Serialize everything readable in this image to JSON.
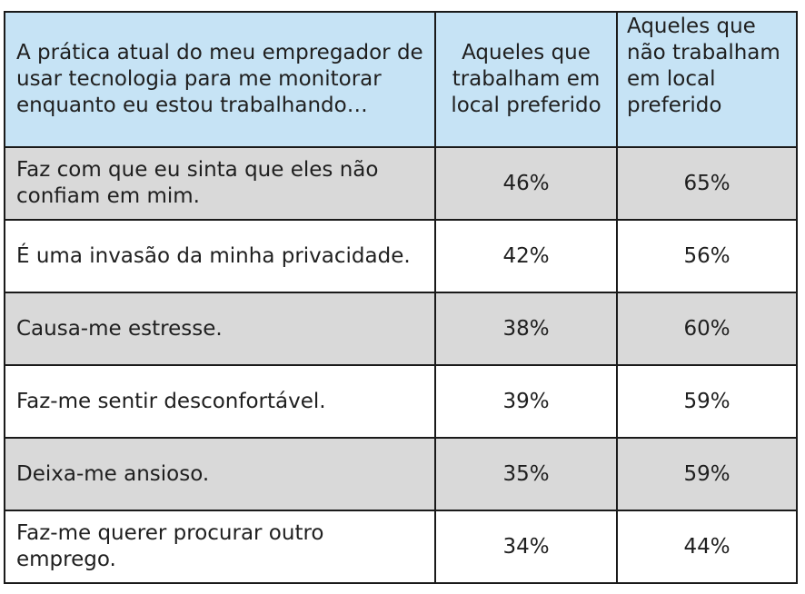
{
  "chart_data": {
    "type": "table",
    "columns": [
      "A prática atual do meu empregador de usar tecnologia para me monitorar enquanto eu estou trabalhando…",
      "Aqueles que trabalham em local preferido",
      "Aqueles que não trabalham em local preferido"
    ],
    "rows": [
      {
        "label": "Faz com que eu sinta que eles não confiam em mim.",
        "preferred": "46%",
        "not_preferred": "65%"
      },
      {
        "label": "É uma invasão da minha privacidade.",
        "preferred": "42%",
        "not_preferred": "56%"
      },
      {
        "label": "Causa-me estresse.",
        "preferred": "38%",
        "not_preferred": "60%"
      },
      {
        "label": "Faz-me sentir desconfortável.",
        "preferred": "39%",
        "not_preferred": "59%"
      },
      {
        "label": "Deixa-me ansioso.",
        "preferred": "35%",
        "not_preferred": "59%"
      },
      {
        "label": "Faz-me querer procurar outro emprego.",
        "preferred": "34%",
        "not_preferred": "44%"
      }
    ]
  },
  "colors": {
    "header_bg": "#c6e3f5",
    "shaded_row_bg": "#d9d9d9",
    "plain_row_bg": "#ffffff",
    "border": "#1a1a1a"
  }
}
